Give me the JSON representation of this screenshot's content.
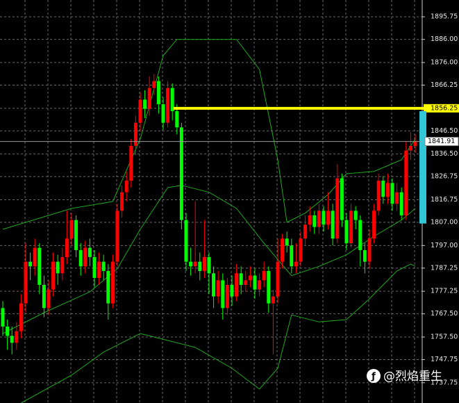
{
  "chart_data": {
    "type": "candlestick",
    "up_color": "#ff0000",
    "down_color": "#00ff00",
    "grid": true,
    "ylim": [
      1729,
      1903
    ],
    "yticks": [
      1895.75,
      {
        "value": 1886,
        "label": "1886.00"
      },
      {
        "value": 1876,
        "label": "1876.00"
      },
      1866.25,
      1856.25,
      {
        "value": 1846.5,
        "label": "1846.50"
      },
      {
        "value": 1836.5,
        "label": "1836.50"
      },
      1826.75,
      1816.75,
      {
        "value": 1807,
        "label": "1807.00"
      },
      {
        "value": 1797,
        "label": "1797.00"
      },
      1787.25,
      1777.25,
      {
        "value": 1767.5,
        "label": "1767.50"
      },
      {
        "value": 1757.5,
        "label": "1757.50"
      },
      1747.75,
      1737.75
    ],
    "open": [
      1770,
      1762,
      1758,
      1755,
      1760,
      1772,
      1790,
      1788,
      1796,
      1780,
      1770,
      1778,
      1790,
      1785,
      1792,
      1800,
      1808,
      1795,
      1788,
      1796,
      1792,
      1783,
      1790,
      1786,
      1772,
      1790,
      1812,
      1820,
      1825,
      1840,
      1850,
      1860,
      1856,
      1865,
      1868,
      1858,
      1850,
      1865,
      1855,
      1848,
      1808,
      1790,
      1788,
      1790,
      1786,
      1792,
      1785,
      1775,
      1782,
      1770,
      1780,
      1775,
      1785,
      1780,
      1782,
      1784,
      1778,
      1782,
      1786,
      1772,
      1775,
      1790,
      1800,
      1797,
      1788,
      1790,
      1800,
      1806,
      1810,
      1805,
      1812,
      1806,
      1812,
      1800,
      1826,
      1808,
      1798,
      1812,
      1808,
      1795,
      1790,
      1800,
      1812,
      1825,
      1818,
      1824,
      1815,
      1820,
      1810,
      1838,
      1840
    ],
    "high": [
      1773,
      1765,
      1762,
      1764,
      1776,
      1798,
      1794,
      1800,
      1798,
      1784,
      1782,
      1794,
      1793,
      1796,
      1812,
      1811,
      1810,
      1798,
      1799,
      1800,
      1795,
      1794,
      1793,
      1789,
      1793,
      1815,
      1823,
      1829,
      1843,
      1853,
      1863,
      1864,
      1870,
      1871,
      1870,
      1861,
      1868,
      1867,
      1858,
      1850,
      1811,
      1796,
      1816,
      1794,
      1808,
      1794,
      1788,
      1786,
      1785,
      1783,
      1784,
      1789,
      1788,
      1786,
      1788,
      1787,
      1785,
      1790,
      1788,
      1778,
      1800,
      1802,
      1803,
      1800,
      1798,
      1803,
      1810,
      1814,
      1812,
      1815,
      1814,
      1820,
      1815,
      1832,
      1828,
      1811,
      1815,
      1814,
      1810,
      1798,
      1804,
      1815,
      1828,
      1827,
      1828,
      1826,
      1824,
      1822,
      1842,
      1846,
      1845
    ],
    "low": [
      1758,
      1752,
      1750,
      1752,
      1757,
      1768,
      1782,
      1784,
      1776,
      1766,
      1767,
      1775,
      1780,
      1782,
      1789,
      1797,
      1792,
      1784,
      1785,
      1788,
      1779,
      1780,
      1782,
      1765,
      1770,
      1788,
      1809,
      1816,
      1822,
      1836,
      1846,
      1852,
      1853,
      1862,
      1854,
      1847,
      1848,
      1851,
      1845,
      1804,
      1786,
      1784,
      1785,
      1782,
      1783,
      1776,
      1770,
      1772,
      1765,
      1767,
      1771,
      1773,
      1776,
      1777,
      1779,
      1774,
      1775,
      1779,
      1768,
      1750,
      1772,
      1787,
      1794,
      1785,
      1785,
      1788,
      1797,
      1803,
      1802,
      1802,
      1803,
      1804,
      1797,
      1798,
      1805,
      1795,
      1796,
      1804,
      1788,
      1785,
      1787,
      1798,
      1810,
      1815,
      1815,
      1812,
      1812,
      1808,
      1808,
      1834,
      1837
    ],
    "close": [
      1762,
      1758,
      1755,
      1760,
      1772,
      1790,
      1788,
      1796,
      1780,
      1770,
      1778,
      1790,
      1785,
      1792,
      1800,
      1808,
      1795,
      1788,
      1796,
      1792,
      1783,
      1790,
      1786,
      1772,
      1790,
      1812,
      1820,
      1825,
      1840,
      1850,
      1860,
      1856,
      1865,
      1868,
      1858,
      1850,
      1865,
      1855,
      1848,
      1808,
      1790,
      1788,
      1790,
      1786,
      1792,
      1785,
      1775,
      1782,
      1770,
      1780,
      1775,
      1785,
      1780,
      1782,
      1784,
      1778,
      1782,
      1786,
      1772,
      1775,
      1790,
      1800,
      1797,
      1788,
      1790,
      1800,
      1806,
      1810,
      1805,
      1812,
      1806,
      1812,
      1800,
      1826,
      1808,
      1798,
      1812,
      1808,
      1795,
      1790,
      1800,
      1812,
      1825,
      1818,
      1824,
      1815,
      1820,
      1810,
      1838,
      1840,
      1841.91
    ],
    "bands": [
      {
        "color": "#1faa1f",
        "x": [
          0,
          15,
          24,
          30,
          35,
          38,
          51,
          56,
          60,
          62,
          66,
          71,
          75,
          81,
          87,
          90
        ],
        "values": [
          1804,
          1813,
          1816,
          1843,
          1879,
          1886,
          1886,
          1873,
          1834,
          1807,
          1811,
          1819,
          1828,
          1829,
          1834,
          1843
        ]
      },
      {
        "color": "#1faa1f",
        "x": [
          0,
          9,
          19,
          25,
          30,
          36,
          39,
          45,
          51,
          57,
          63,
          69,
          75,
          81,
          87,
          90
        ],
        "values": [
          1759,
          1768,
          1777,
          1787,
          1804,
          1822,
          1823,
          1820,
          1813,
          1798,
          1784,
          1788,
          1793,
          1801,
          1808,
          1813
        ]
      },
      {
        "color": "#1faa1f",
        "x": [
          4,
          15,
          22,
          30,
          36,
          42,
          50,
          56,
          60,
          63,
          69,
          75,
          80,
          86,
          89,
          90
        ],
        "values": [
          1729,
          1741,
          1751,
          1759,
          1756,
          1753,
          1744,
          1735,
          1744,
          1767,
          1764,
          1765,
          1774,
          1786,
          1789,
          1788
        ]
      }
    ],
    "level_line": {
      "value": 1856.25,
      "color": "#ffff00"
    },
    "range_bar": {
      "high": 1855,
      "low": 1806.5,
      "color": "#33c6d6"
    },
    "last_price": 1841.91,
    "watermark": "@烈焰重生"
  }
}
